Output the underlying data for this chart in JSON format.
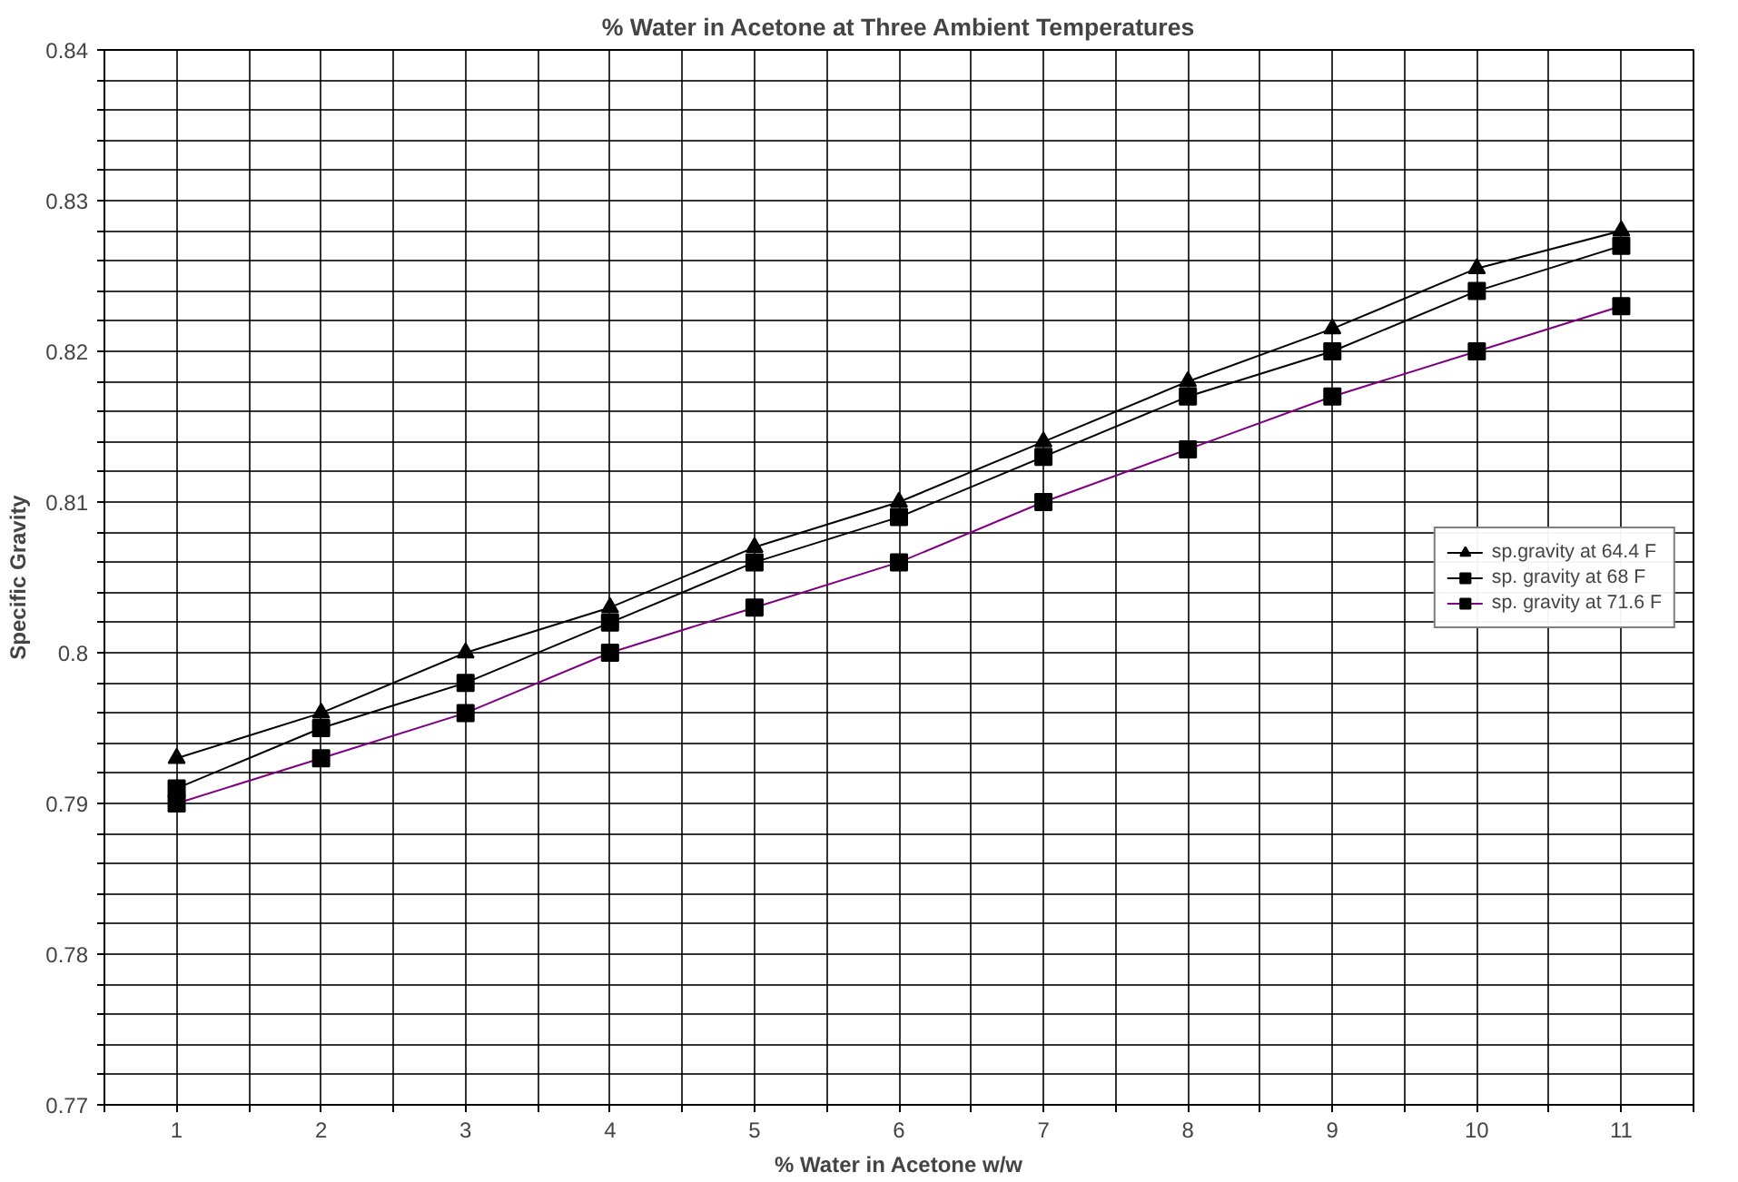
{
  "chart_data": {
    "type": "line",
    "title": "% Water in Acetone at Three Ambient Temperatures",
    "xlabel": "% Water in Acetone w/w",
    "ylabel": "Specific Gravity",
    "x": [
      1,
      2,
      3,
      4,
      5,
      6,
      7,
      8,
      9,
      10,
      11
    ],
    "series": [
      {
        "name": "sp.gravity at 64.4 F",
        "color": "#000000",
        "marker": "triangle",
        "values": [
          0.793,
          0.796,
          0.8,
          0.803,
          0.807,
          0.81,
          0.814,
          0.818,
          0.8215,
          0.8255,
          0.828
        ]
      },
      {
        "name": "sp. gravity at 68 F",
        "color": "#000000",
        "marker": "square",
        "values": [
          0.791,
          0.795,
          0.798,
          0.802,
          0.806,
          0.809,
          0.813,
          0.817,
          0.82,
          0.824,
          0.827
        ]
      },
      {
        "name": "sp. gravity at 71.6 F",
        "color": "#800080",
        "marker": "square",
        "values": [
          0.79,
          0.793,
          0.796,
          0.8,
          0.803,
          0.806,
          0.81,
          0.8135,
          0.817,
          0.82,
          0.823
        ]
      }
    ],
    "xlim": [
      0.5,
      11.5
    ],
    "xticks": [
      {
        "value": 0.5,
        "label": null
      },
      1,
      {
        "value": 1.5,
        "label": null
      },
      2,
      {
        "value": 2.5,
        "label": null
      },
      3,
      {
        "value": 3.5,
        "label": null
      },
      4,
      {
        "value": 4.5,
        "label": null
      },
      5,
      {
        "value": 5.5,
        "label": null
      },
      6,
      {
        "value": 6.5,
        "label": null
      },
      7,
      {
        "value": 7.5,
        "label": null
      },
      8,
      {
        "value": 8.5,
        "label": null
      },
      9,
      {
        "value": 9.5,
        "label": null
      },
      10,
      {
        "value": 10.5,
        "label": null
      },
      11,
      {
        "value": 11.5,
        "label": null
      }
    ],
    "ylim": [
      0.77,
      0.84
    ],
    "yticks": [
      0.77,
      {
        "value": 0.772,
        "label": null
      },
      {
        "value": 0.774,
        "label": null
      },
      {
        "value": 0.776,
        "label": null
      },
      {
        "value": 0.778,
        "label": null
      },
      0.78,
      {
        "value": 0.782,
        "label": null
      },
      {
        "value": 0.784,
        "label": null
      },
      {
        "value": 0.786,
        "label": null
      },
      {
        "value": 0.788,
        "label": null
      },
      0.79,
      {
        "value": 0.792,
        "label": null
      },
      {
        "value": 0.794,
        "label": null
      },
      {
        "value": 0.796,
        "label": null
      },
      {
        "value": 0.798,
        "label": null
      },
      0.8,
      {
        "value": 0.802,
        "label": null
      },
      {
        "value": 0.804,
        "label": null
      },
      {
        "value": 0.806,
        "label": null
      },
      {
        "value": 0.808,
        "label": null
      },
      0.81,
      {
        "value": 0.812,
        "label": null
      },
      {
        "value": 0.814,
        "label": null
      },
      {
        "value": 0.816,
        "label": null
      },
      {
        "value": 0.818,
        "label": null
      },
      0.82,
      {
        "value": 0.822,
        "label": null
      },
      {
        "value": 0.824,
        "label": null
      },
      {
        "value": 0.826,
        "label": null
      },
      {
        "value": 0.828,
        "label": null
      },
      0.83,
      {
        "value": 0.832,
        "label": null
      },
      {
        "value": 0.834,
        "label": null
      },
      {
        "value": 0.836,
        "label": null
      },
      {
        "value": 0.838,
        "label": null
      },
      0.84
    ],
    "grid": true,
    "legend": "right",
    "line_style": "solid"
  }
}
